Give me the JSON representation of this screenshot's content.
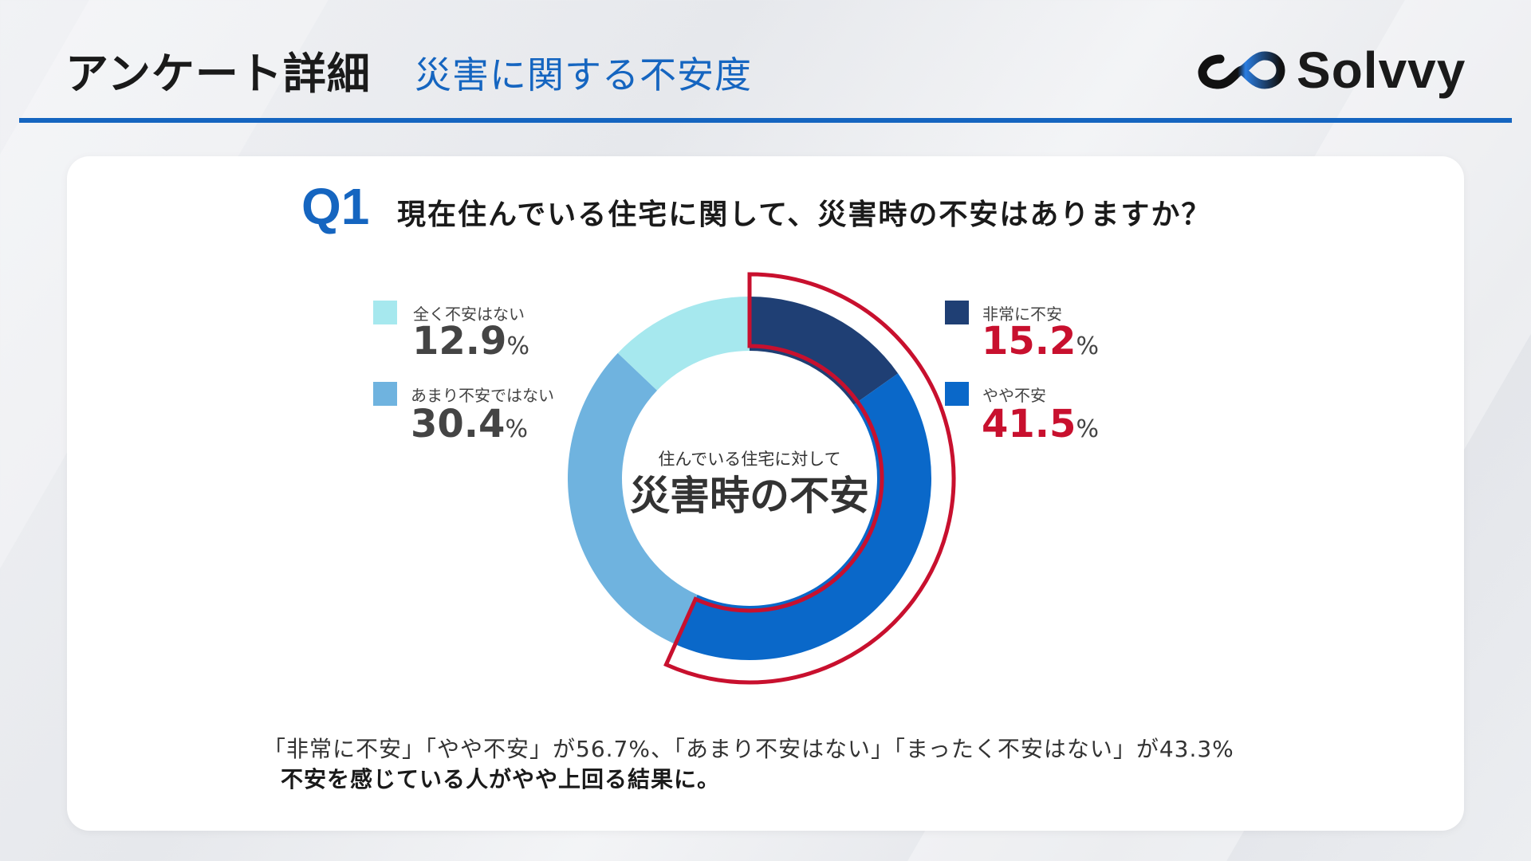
{
  "header": {
    "title": "アンケート詳細",
    "subtitle": "災害に関する不安度",
    "logo_text": "Solvvy"
  },
  "question": {
    "label": "Q1",
    "text": "現在住んでいる住宅に関して、災害時の不安はありますか？"
  },
  "center": {
    "small": "住んでいる住宅に対して",
    "big": "災害時の不安"
  },
  "legend": {
    "left": [
      {
        "label": "全く不安はない",
        "value": "12.9",
        "unit": "%",
        "color": "#a6e8ee"
      },
      {
        "label": "あまり不安ではない",
        "value": "30.4",
        "unit": "%",
        "color": "#6fb3df"
      }
    ],
    "right": [
      {
        "label": "非常に不安",
        "value": "15.2",
        "unit": "%",
        "color": "#1f3f74"
      },
      {
        "label": "やや不安",
        "value": "41.5",
        "unit": "%",
        "color": "#0a68c9"
      }
    ]
  },
  "summary": {
    "line1": "「非常に不安」「やや不安」が56.7%、「あまり不安はない」「まったく不安はない」が43.3%",
    "line2": "不安を感じている人がやや上回る結果に。"
  },
  "colors": {
    "accent": "#1565c0",
    "highlight_red": "#c8102e",
    "value_gray": "#444444"
  },
  "chart_data": {
    "type": "pie",
    "donut": true,
    "categories": [
      "非常に不安",
      "やや不安",
      "あまり不安ではない",
      "全く不安はない"
    ],
    "values": [
      15.2,
      41.5,
      30.4,
      12.9
    ],
    "colors": [
      "#1f3f74",
      "#0a68c9",
      "#6fb3df",
      "#a6e8ee"
    ],
    "highlighted": [
      "非常に不安",
      "やや不安"
    ]
  }
}
